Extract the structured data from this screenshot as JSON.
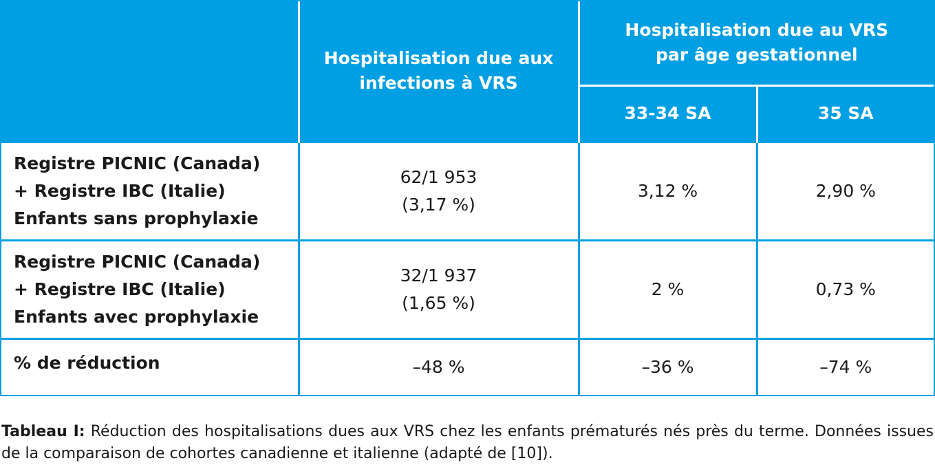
{
  "table": {
    "header": {
      "col_hosp_line1": "Hospitalisation due aux",
      "col_hosp_line2": "infections à VRS",
      "col_gest_line1": "Hospitalisation due au VRS",
      "col_gest_line2": "par âge gestationnel",
      "sub_33_34": "33-34 SA",
      "sub_35": "35 SA"
    },
    "rows": [
      {
        "label_line1": "Registre PICNIC (Canada)",
        "label_line2": "+ Registre IBC (Italie)",
        "label_line3": "Enfants sans prophylaxie",
        "hosp_line1": "62/1 953",
        "hosp_line2": "(3,17 %)",
        "sa_33_34": "3,12 %",
        "sa_35": "2,90 %"
      },
      {
        "label_line1": "Registre PICNIC (Canada)",
        "label_line2": "+ Registre IBC (Italie)",
        "label_line3": "Enfants avec prophylaxie",
        "hosp_line1": "32/1 937",
        "hosp_line2": "(1,65 %)",
        "sa_33_34": "2 %",
        "sa_35": "0,73 %"
      },
      {
        "label_line1": "% de réduction",
        "hosp_line1": "–48 %",
        "sa_33_34": "–36 %",
        "sa_35": "–74 %"
      }
    ]
  },
  "caption": {
    "label": "Tableau I:",
    "text": " Réduction des hospitalisations dues aux VRS chez les enfants prématurés nés près du terme. Données issues de la comparaison de cohortes canadienne et italienne (adapté de [10])."
  },
  "colors": {
    "accent": "#009fe3",
    "header_text": "#ffffff",
    "body_text": "#1a1a1a"
  }
}
